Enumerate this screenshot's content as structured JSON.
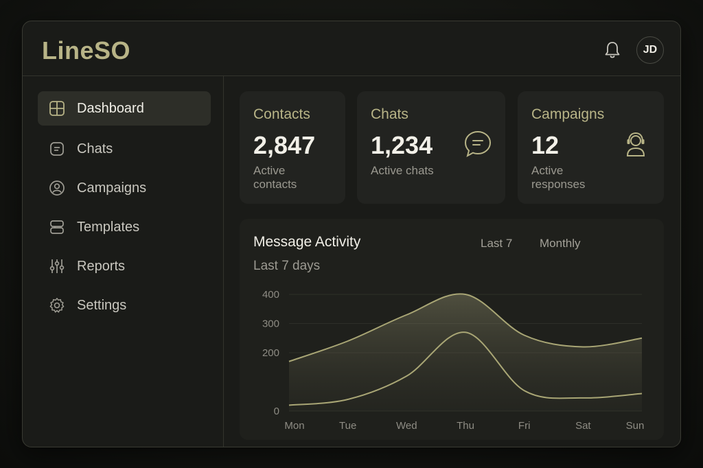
{
  "app": {
    "logo": "LineSO",
    "avatar_initials": "JD"
  },
  "sidebar": {
    "items": [
      {
        "label": "Dashboard",
        "icon": "grid-icon",
        "active": true
      },
      {
        "label": "Chats",
        "icon": "chat-square-icon",
        "active": false
      },
      {
        "label": "Campaigns",
        "icon": "user-circle-icon",
        "active": false
      },
      {
        "label": "Templates",
        "icon": "template-icon",
        "active": false
      },
      {
        "label": "Reports",
        "icon": "sliders-icon",
        "active": false
      },
      {
        "label": "Settings",
        "icon": "gear-icon",
        "active": false
      }
    ]
  },
  "cards": {
    "contacts": {
      "title": "Contacts",
      "value": "2,847",
      "subtitle": "Active contacts"
    },
    "chats": {
      "title": "Chats",
      "value": "1,234",
      "subtitle": "Active chats",
      "icon": "chat-bubble-icon"
    },
    "campaigns": {
      "title": "Campaigns",
      "value": "12",
      "subtitle": "Active responses",
      "icon": "headset-user-icon"
    }
  },
  "activity": {
    "title": "Message Activity",
    "subtitle": "Last 7 days",
    "range_options": [
      "Last 7",
      "Monthly"
    ]
  },
  "colors": {
    "accent": "#b8b487",
    "background": "#1a1b18",
    "card": "#222320"
  },
  "chart_data": {
    "type": "area",
    "categories": [
      "Mon",
      "Tue",
      "Wed",
      "Thu",
      "Fri",
      "Sat",
      "Sun"
    ],
    "series": [
      {
        "values": [
          170,
          240,
          330,
          400,
          260,
          220,
          250
        ]
      },
      {
        "values": [
          20,
          40,
          120,
          270,
          70,
          45,
          60
        ]
      }
    ],
    "yticks": [
      400,
      300,
      200,
      0
    ],
    "ylim": [
      0,
      400
    ],
    "grid": true
  }
}
